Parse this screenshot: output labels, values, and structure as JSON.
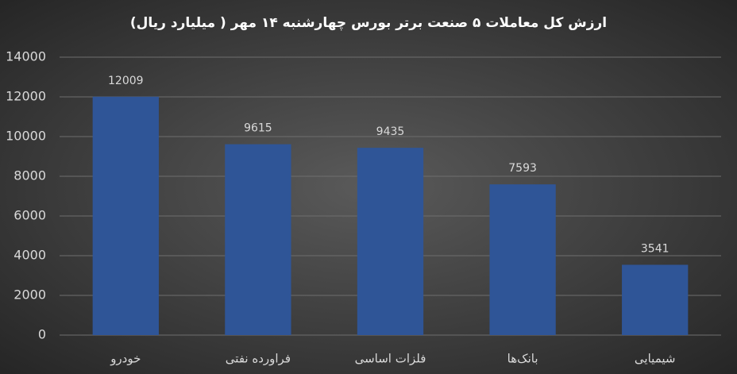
{
  "chart_data": {
    "type": "bar",
    "title": "ارزش کل معاملات ۵ صنعت برتر بورس چهارشنبه ۱۴ مهر ( میلیارد ریال)",
    "categories": [
      "خودرو",
      "فراورده نفتی",
      "فلزات اساسی",
      "بانک‌ها",
      "شیمیایی"
    ],
    "values": [
      12009,
      9615,
      9435,
      7593,
      3541
    ],
    "color": "#2f5597",
    "ylim": [
      0,
      14000
    ],
    "yticks": [
      0,
      2000,
      4000,
      6000,
      8000,
      10000,
      12000,
      14000
    ],
    "grid": true
  }
}
